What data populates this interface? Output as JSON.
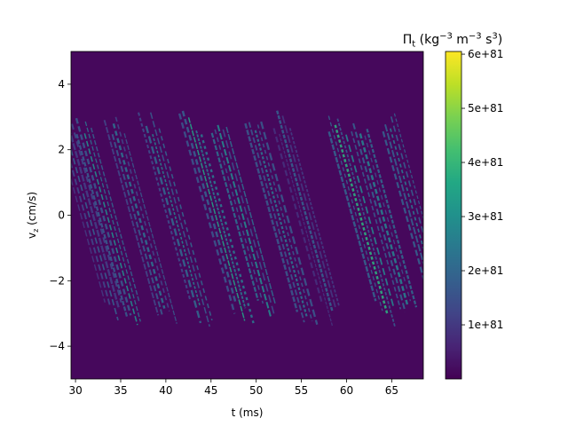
{
  "chart_data": {
    "type": "heatmap",
    "title": "",
    "xlabel": "t (ms)",
    "ylabel": "v_z (cm/s)",
    "xlim": [
      29.5,
      68.5
    ],
    "ylim": [
      -5,
      5
    ],
    "x_ticks": [
      30,
      35,
      40,
      45,
      50,
      55,
      60,
      65
    ],
    "y_ticks": [
      -4,
      -2,
      0,
      2,
      4
    ],
    "y_tick_labels": [
      "−4",
      "−2",
      "0",
      "2",
      "4"
    ],
    "colormap": "viridis",
    "colorbar": {
      "label": "Π_t (kg^-3 m^-3 s^3)",
      "range": [
        0,
        6.05e+81
      ],
      "ticks": [
        1e+81,
        2e+81,
        3e+81,
        4e+81,
        5e+81,
        6e+81
      ],
      "tick_labels": [
        "1e+81",
        "2e+81",
        "3e+81",
        "4e+81",
        "5e+81",
        "6e+81"
      ]
    },
    "background_level": 5e+80,
    "features": [
      {
        "t_at_vz0": 31.5,
        "slope_ms_per_cms": -1.0,
        "peak": 1.8e+81
      },
      {
        "t_at_vz0": 33.5,
        "slope_ms_per_cms": -1.0,
        "peak": 3e+81
      },
      {
        "t_at_vz0": 37.0,
        "slope_ms_per_cms": -1.0,
        "peak": 2.2e+81
      },
      {
        "t_at_vz0": 41.0,
        "slope_ms_per_cms": -1.0,
        "peak": 2.6e+81
      },
      {
        "t_at_vz0": 45.5,
        "slope_ms_per_cms": -1.0,
        "peak": 3.5e+81
      },
      {
        "t_at_vz0": 48.5,
        "slope_ms_per_cms": -1.0,
        "peak": 2.8e+81
      },
      {
        "t_at_vz0": 52.5,
        "slope_ms_per_cms": -1.0,
        "peak": 2.3e+81
      },
      {
        "t_at_vz0": 55.5,
        "slope_ms_per_cms": -1.0,
        "peak": 1.8e+81
      },
      {
        "t_at_vz0": 61.5,
        "slope_ms_per_cms": -1.0,
        "peak": 3.8e+81
      },
      {
        "t_at_vz0": 64.0,
        "slope_ms_per_cms": -1.0,
        "peak": 2.6e+81
      },
      {
        "t_at_vz0": 67.5,
        "slope_ms_per_cms": -1.0,
        "peak": 2.4e+81
      }
    ]
  }
}
